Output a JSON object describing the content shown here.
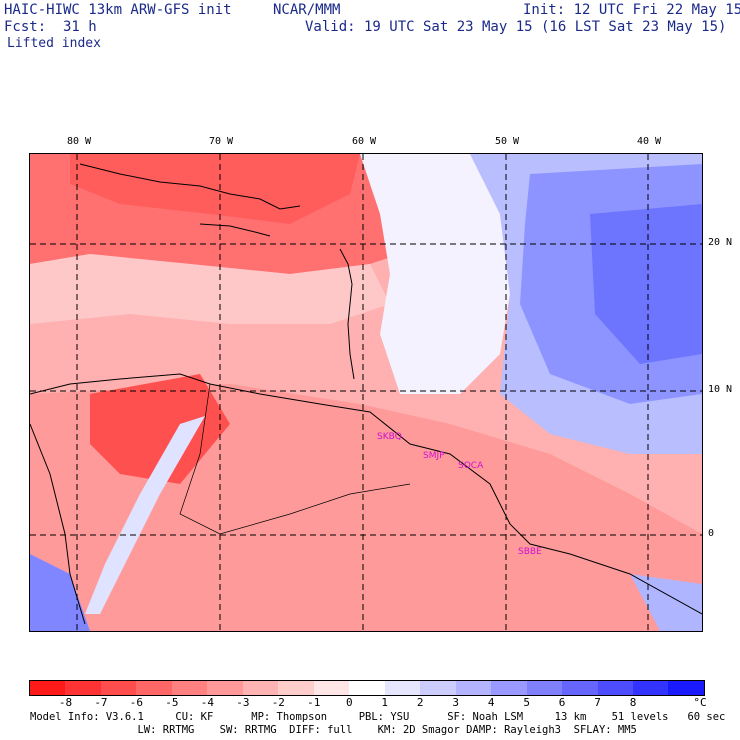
{
  "header": {
    "model": "HAIC-HIWC 13km ARW-GFS init",
    "org": "NCAR/MMM",
    "init": "Init: 12 UTC Fri 22 May 15",
    "fcst_label": "Fcst:",
    "fcst_value": "31 h",
    "valid": "Valid: 19 UTC Sat 23 May 15 (16 LST Sat 23 May 15)",
    "field": "Lifted index"
  },
  "map": {
    "lon_labels": [
      "80 W",
      "70 W",
      "60 W",
      "50 W",
      "40 W"
    ],
    "lat_labels": [
      "20 N",
      "10 N",
      "0"
    ],
    "sites": [
      "SKBQ",
      "SMJP",
      "SOCA",
      "SBBE"
    ]
  },
  "colorbar": {
    "colors": [
      "#ff1a1a",
      "#ff3333",
      "#ff4d4d",
      "#ff6666",
      "#ff8080",
      "#ff9999",
      "#ffb3b3",
      "#ffcccc",
      "#ffe6e6",
      "#ffffff",
      "#e6e6ff",
      "#ccccff",
      "#b3b3ff",
      "#9999ff",
      "#8080ff",
      "#6666ff",
      "#4d4dff",
      "#3333ff",
      "#1a1aff"
    ],
    "labels": [
      "-8",
      "-7",
      "-6",
      "-5",
      "-4",
      "-3",
      "-2",
      "-1",
      "0",
      "1",
      "2",
      "3",
      "4",
      "5",
      "6",
      "7",
      "8"
    ],
    "unit": "°C"
  },
  "footer": {
    "line1": "Model Info: V3.6.1     CU: KF      MP: Thompson     PBL: YSU      SF: Noah LSM     13 km    51 levels   60 sec",
    "line2": "                 LW: RRTMG    SW: RRTMG  DIFF: full    KM: 2D Smagor DAMP: Rayleigh3  SFLAY: MM5"
  }
}
